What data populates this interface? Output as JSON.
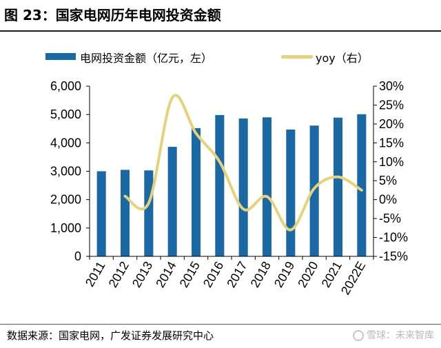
{
  "figure": {
    "title": "图 23：国家电网历年电网投资金额",
    "source": "数据来源：国家电网，广发证券发展研究中心",
    "watermark": "雪球：未来智库"
  },
  "colors": {
    "bar": "#1a68a4",
    "line": "#e6d27a"
  },
  "chart_data": {
    "type": "bar",
    "categories": [
      "2011",
      "2012",
      "2013",
      "2014",
      "2015",
      "2016",
      "2017",
      "2018",
      "2019",
      "2020",
      "2021",
      "2022E"
    ],
    "series": [
      {
        "name": "电网投资金额（亿元，左）",
        "type": "bar",
        "axis": "left",
        "values": [
          3000,
          3050,
          3030,
          3860,
          4520,
          4980,
          4860,
          4900,
          4470,
          4610,
          4890,
          5010
        ]
      },
      {
        "name": "yoy（右）",
        "type": "line",
        "axis": "right",
        "values": [
          null,
          0.9,
          -0.9,
          27.0,
          17.5,
          10.0,
          -2.5,
          0.8,
          -8.0,
          3.0,
          6.0,
          2.5
        ]
      }
    ],
    "y_left": {
      "ylim": [
        0,
        6000
      ],
      "ticks": [
        "0",
        "1,000",
        "2,000",
        "3,000",
        "4,000",
        "5,000",
        "6,000"
      ]
    },
    "y_right": {
      "ylim": [
        -15,
        30
      ],
      "ticks": [
        "-15%",
        "-10%",
        "-5%",
        "0%",
        "5%",
        "10%",
        "15%",
        "20%",
        "25%",
        "30%"
      ]
    },
    "grid": false,
    "legend_position": "top"
  }
}
